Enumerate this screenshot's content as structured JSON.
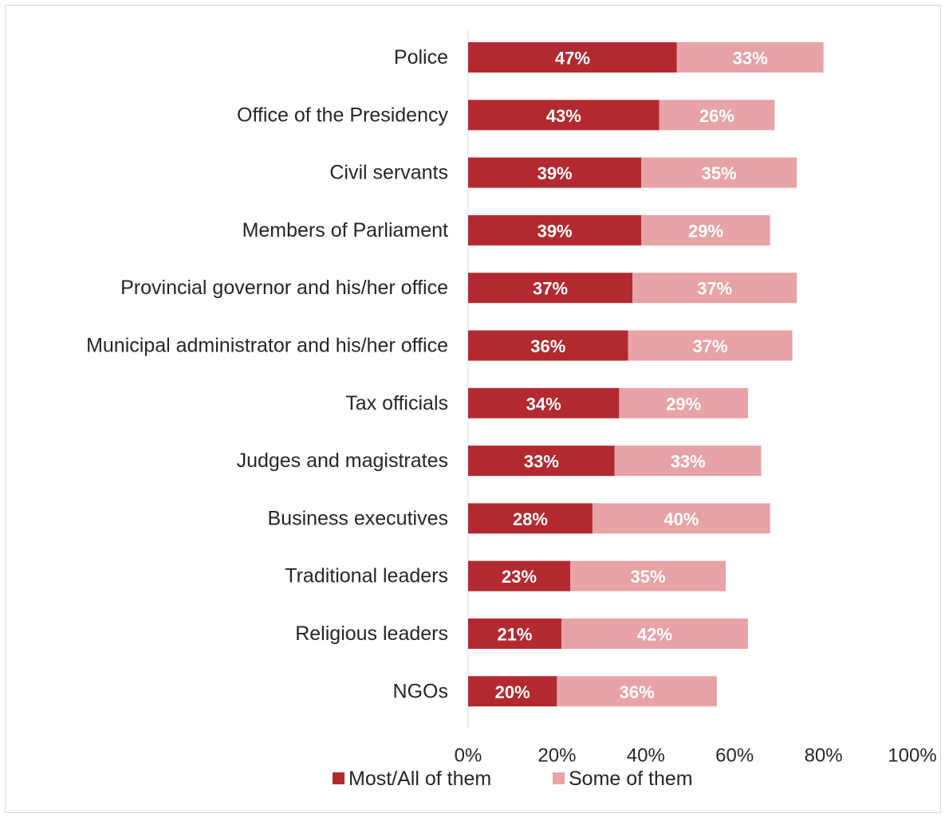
{
  "chart_data": {
    "type": "bar",
    "orientation": "horizontal",
    "stacked": true,
    "categories": [
      "Police",
      "Office of the Presidency",
      "Civil servants",
      "Members of Parliament",
      "Provincial governor and his/her office",
      "Municipal administrator and his/her office",
      "Tax officials",
      "Judges and magistrates",
      "Business executives",
      "Traditional leaders",
      "Religious leaders",
      "NGOs"
    ],
    "series": [
      {
        "name": "Most/All of them",
        "color": "#b22a30",
        "values": [
          47,
          43,
          39,
          39,
          37,
          36,
          34,
          33,
          28,
          23,
          21,
          20
        ],
        "labels": [
          "47%",
          "43%",
          "39%",
          "39%",
          "37%",
          "36%",
          "34%",
          "33%",
          "28%",
          "23%",
          "21%",
          "20%"
        ]
      },
      {
        "name": "Some of them",
        "color": "#e8a3a6",
        "values": [
          33,
          26,
          35,
          29,
          37,
          37,
          29,
          33,
          40,
          35,
          42,
          36
        ],
        "labels": [
          "33%",
          "26%",
          "35%",
          "29%",
          "37%",
          "37%",
          "29%",
          "33%",
          "40%",
          "35%",
          "42%",
          "36%"
        ]
      }
    ],
    "xlim": [
      0,
      100
    ],
    "xticks": [
      0,
      20,
      40,
      60,
      80,
      100
    ],
    "xtick_labels": [
      "0%",
      "20%",
      "40%",
      "60%",
      "80%",
      "100%"
    ],
    "title": "",
    "xlabel": "",
    "ylabel": "",
    "grid": false,
    "legend_position": "bottom"
  }
}
